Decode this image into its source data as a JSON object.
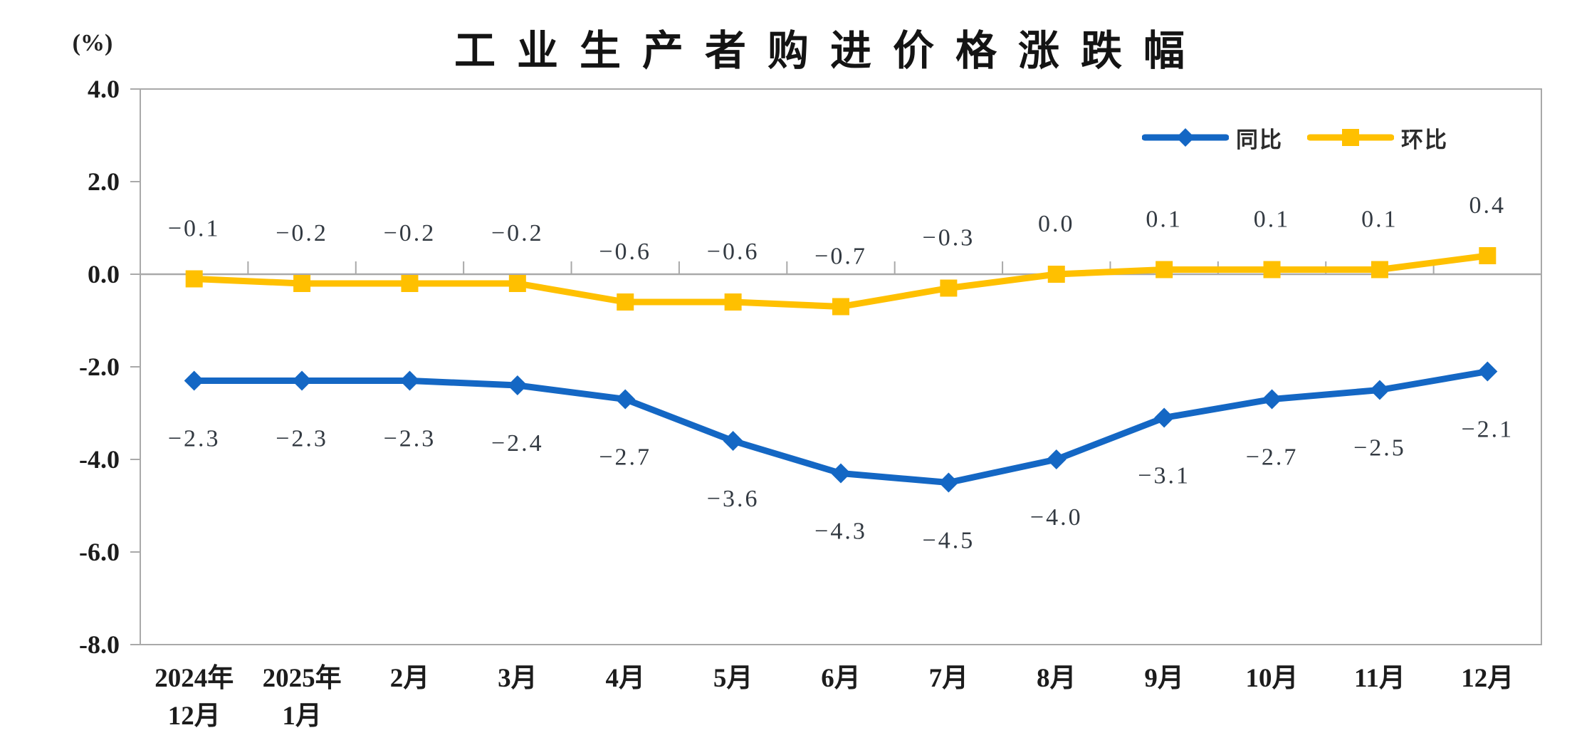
{
  "chart": {
    "title": "工业生产者购进价格涨跌幅",
    "unit_label": "(%)"
  },
  "chart_data": {
    "type": "line",
    "title": "工业生产者购进价格涨跌幅",
    "xlabel": "",
    "ylabel": "(%)",
    "ylim": [
      -8.0,
      4.0
    ],
    "ytick_interval": 2.0,
    "ytick_values": [
      4,
      2,
      0,
      -2,
      -4,
      -6,
      -8
    ],
    "ytick_labels": [
      "4.0",
      "2.0",
      "0.0",
      "-2.0",
      "-4.0",
      "-6.0",
      "-8.0"
    ],
    "grid": false,
    "legend_position": "top-right-inside",
    "categories": [
      "2024年12月",
      "2025年1月",
      "2月",
      "3月",
      "4月",
      "5月",
      "6月",
      "7月",
      "8月",
      "9月",
      "10月",
      "11月",
      "12月"
    ],
    "categories_display": [
      [
        "2024年",
        "12月"
      ],
      [
        "2025年",
        "1月"
      ],
      [
        "2月"
      ],
      [
        "3月"
      ],
      [
        "4月"
      ],
      [
        "5月"
      ],
      [
        "6月"
      ],
      [
        "7月"
      ],
      [
        "8月"
      ],
      [
        "9月"
      ],
      [
        "10月"
      ],
      [
        "11月"
      ],
      [
        "12月"
      ]
    ],
    "colors": {
      "axis": "#A9A9A9",
      "axis_label": "#1C1C1C",
      "data_label": "#333A42"
    },
    "series": [
      {
        "name": "同比",
        "marker": "diamond",
        "color": "#1467C4",
        "label_position": "below",
        "values": [
          -2.3,
          -2.3,
          -2.3,
          -2.4,
          -2.7,
          -3.6,
          -4.3,
          -4.5,
          -4.0,
          -3.1,
          -2.7,
          -2.5,
          -2.1
        ],
        "labels": [
          "−2.3",
          "−2.3",
          "−2.3",
          "−2.4",
          "−2.7",
          "−3.6",
          "−4.3",
          "−4.5",
          "−4.0",
          "−3.1",
          "−2.7",
          "−2.5",
          "−2.1"
        ]
      },
      {
        "name": "环比",
        "marker": "square",
        "color": "#FFC000",
        "label_position": "above",
        "values": [
          -0.1,
          -0.2,
          -0.2,
          -0.2,
          -0.6,
          -0.6,
          -0.7,
          -0.3,
          0.0,
          0.1,
          0.1,
          0.1,
          0.4
        ],
        "labels": [
          "−0.1",
          "−0.2",
          "−0.2",
          "−0.2",
          "−0.6",
          "−0.6",
          "−0.7",
          "−0.3",
          "0.0",
          "0.1",
          "0.1",
          "0.1",
          "0.4"
        ]
      }
    ]
  }
}
